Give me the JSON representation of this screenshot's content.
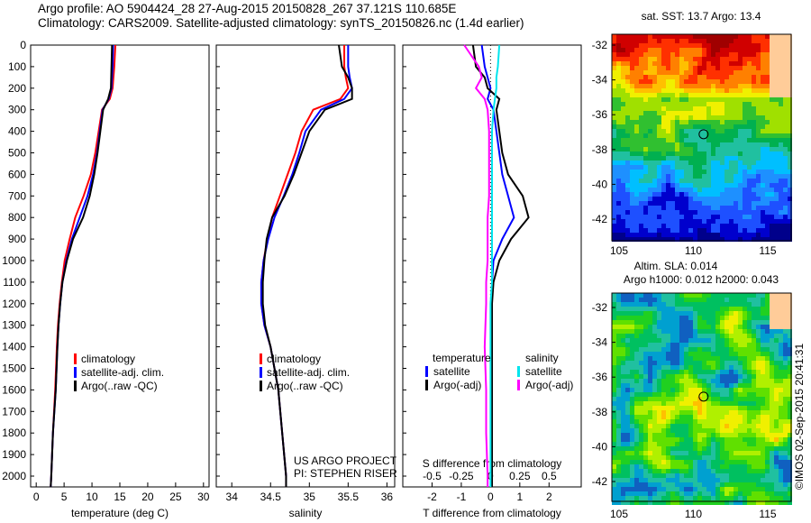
{
  "header": {
    "line1": "Argo profile: AO 5904424_28 27-Aug-2015 20150828_267 37.121S 110.685E",
    "line2": "Climatology: CARS2009. Satellite-adjusted climatology: synTS_20150826.nc (1.4d earlier)"
  },
  "chart_data": [
    {
      "type": "line",
      "xlabel": "temperature (deg C)",
      "ylabel": "depth",
      "xlim": [
        -1,
        31
      ],
      "ylim": [
        2050,
        0
      ],
      "xticks": [
        0,
        5,
        10,
        15,
        20,
        25,
        30
      ],
      "yticks": [
        0,
        100,
        200,
        300,
        400,
        500,
        600,
        700,
        800,
        900,
        1000,
        1100,
        1200,
        1300,
        1400,
        1500,
        1600,
        1700,
        1800,
        1900,
        2000
      ],
      "depth": [
        0,
        100,
        200,
        250,
        300,
        400,
        500,
        600,
        700,
        800,
        900,
        1000,
        1100,
        1200,
        1300,
        1400,
        1600,
        1800,
        2000,
        2050
      ],
      "series": [
        {
          "name": "climatology",
          "color": "#ff0000",
          "values": [
            14.2,
            14,
            13.7,
            13.2,
            11.8,
            11.2,
            10.6,
            9.8,
            8.5,
            7.0,
            6.0,
            5.1,
            4.6,
            4.2,
            3.9,
            3.7,
            3.4,
            3.0,
            2.7,
            2.6
          ]
        },
        {
          "name": "satellite-adj. clim.",
          "color": "#0000ff",
          "values": [
            13.8,
            13.7,
            13.5,
            13.0,
            11.9,
            11.4,
            10.9,
            10.2,
            9.2,
            7.8,
            6.4,
            5.4,
            4.7,
            4.3,
            4.0,
            3.8,
            3.5,
            3.0,
            2.7,
            2.6
          ]
        },
        {
          "name": "Argo(..raw -QC)",
          "color": "#000000",
          "values": [
            13.6,
            13.5,
            13.4,
            12.9,
            12.0,
            11.5,
            11.0,
            10.4,
            9.6,
            8.4,
            6.6,
            5.5,
            4.7,
            4.3,
            4.0,
            3.8,
            3.5,
            3.0,
            2.7,
            2.6
          ]
        }
      ]
    },
    {
      "type": "line",
      "xlabel": "salinity",
      "xlim": [
        33.8,
        36.1
      ],
      "xticks": [
        34,
        34.5,
        35,
        35.5,
        36
      ],
      "depth": [
        0,
        100,
        150,
        200,
        250,
        300,
        400,
        500,
        600,
        700,
        800,
        900,
        1000,
        1100,
        1200,
        1300,
        1400,
        1500,
        1600,
        1800,
        2000,
        2050
      ],
      "series": [
        {
          "name": "climatology",
          "color": "#ff0000",
          "values": [
            35.45,
            35.45,
            35.47,
            35.5,
            35.4,
            35.05,
            34.9,
            34.82,
            34.72,
            34.62,
            34.52,
            34.46,
            34.41,
            34.38,
            34.38,
            34.42,
            34.5,
            34.55,
            34.6,
            34.65,
            34.7,
            34.7
          ]
        },
        {
          "name": "satellite-adj. clim.",
          "color": "#0000ff",
          "values": [
            35.5,
            35.5,
            35.52,
            35.55,
            35.45,
            35.15,
            34.95,
            34.87,
            34.78,
            34.67,
            34.55,
            34.47,
            34.41,
            34.38,
            34.38,
            34.42,
            34.5,
            34.55,
            34.6,
            34.65,
            34.7,
            34.7
          ]
        },
        {
          "name": "Argo(..raw -QC)",
          "color": "#000000",
          "values": [
            35.38,
            35.42,
            35.5,
            35.55,
            35.55,
            35.2,
            35.0,
            34.9,
            34.8,
            34.68,
            34.52,
            34.45,
            34.42,
            34.4,
            34.4,
            34.43,
            34.5,
            34.55,
            34.6,
            34.65,
            34.7,
            34.7
          ]
        }
      ],
      "annotation": [
        "US ARGO PROJECT",
        "PI: STEPHEN RISER"
      ]
    },
    {
      "type": "line",
      "xlabel": "T difference from climatology",
      "xlim": [
        -3,
        3.1
      ],
      "xticks": [
        -2,
        -1,
        0,
        1,
        2
      ],
      "top_label": "S difference from climatology",
      "top_ticks": [
        "-0.5",
        "-0.25",
        "0",
        "0.25",
        "0.5"
      ],
      "depth": [
        0,
        100,
        150,
        200,
        250,
        300,
        400,
        500,
        600,
        700,
        800,
        900,
        1000,
        1100,
        1200,
        1400,
        1600,
        1800,
        2000,
        2050
      ],
      "legend_titles": [
        "temperature",
        "salinity"
      ],
      "series": [
        {
          "name": "satellite",
          "group": "temperature",
          "color": "#0000ff",
          "values": [
            -0.3,
            -0.2,
            -0.1,
            0.0,
            -0.1,
            0.1,
            0.2,
            0.3,
            0.4,
            0.6,
            0.8,
            0.4,
            0.1,
            0.05,
            0.05,
            0.05,
            0.05,
            0.05,
            0.05,
            0.05
          ]
        },
        {
          "name": "Argo(-adj)",
          "group": "temperature",
          "color": "#000000",
          "values": [
            -0.6,
            -0.5,
            -0.2,
            -0.1,
            0.3,
            0.2,
            0.3,
            0.4,
            0.6,
            1.1,
            1.3,
            0.7,
            0.3,
            0.1,
            0.05,
            0.05,
            0.05,
            0.05,
            0.05,
            0.05
          ]
        },
        {
          "name": "satellite",
          "group": "salinity",
          "color": "#00e5ee",
          "values": [
            0.3,
            0.25,
            0.2,
            0.2,
            0.15,
            0.1,
            0.05,
            0.05,
            0.05,
            0.05,
            0.05,
            0.05,
            0.05,
            0.05,
            0.0,
            0.0,
            0.0,
            0.0,
            0.0,
            0.0
          ]
        },
        {
          "name": "Argo(-adj)",
          "group": "salinity",
          "color": "#ff00ff",
          "values": [
            -0.9,
            -0.4,
            -0.3,
            -0.5,
            -0.2,
            -0.1,
            -0.05,
            -0.05,
            -0.05,
            -0.05,
            -0.1,
            -0.1,
            -0.1,
            -0.15,
            -0.15,
            -0.2,
            -0.15,
            -0.15,
            -0.1,
            -0.1
          ]
        }
      ]
    },
    {
      "type": "heatmap",
      "title": "sat. SST: 13.7 Argo: 13.4",
      "xticks": [
        "105",
        "110",
        "115"
      ],
      "yticks": [
        "-32",
        "-34",
        "-36",
        "-38",
        "-40",
        "-42"
      ],
      "marker": {
        "lon": 110.685,
        "lat": -37.121
      }
    },
    {
      "type": "heatmap",
      "title": [
        "Altim. SLA: 0.014",
        "Argo h1000: 0.012 h2000: 0.043"
      ],
      "xticks": [
        "105",
        "110",
        "115"
      ],
      "yticks": [
        "-32",
        "-34",
        "-36",
        "-38",
        "-40",
        "-42"
      ],
      "marker": {
        "lon": 110.685,
        "lat": -37.121
      }
    }
  ],
  "footer": {
    "stamp": "©IMOS 02-Sep-2015 20:41:31"
  }
}
